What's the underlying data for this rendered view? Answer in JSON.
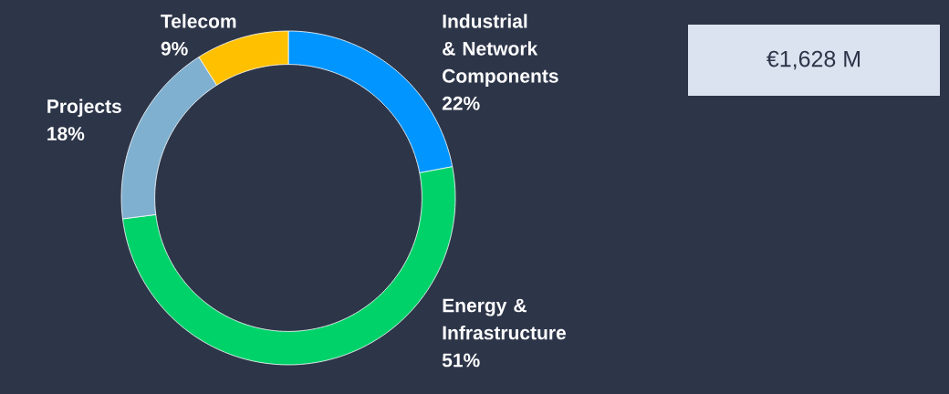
{
  "chart_data": {
    "type": "donut",
    "categories": [
      "Industrial & Network Components",
      "Energy & Infrastructure",
      "Projects",
      "Telecom"
    ],
    "values": [
      22,
      51,
      18,
      9
    ],
    "colors": [
      "#0095ff",
      "#00d26a",
      "#7fb0d0",
      "#ffc000"
    ],
    "value_labels": [
      "22%",
      "51%",
      "18%",
      "9%"
    ],
    "annotations": [
      "€1,628 M"
    ]
  }
}
